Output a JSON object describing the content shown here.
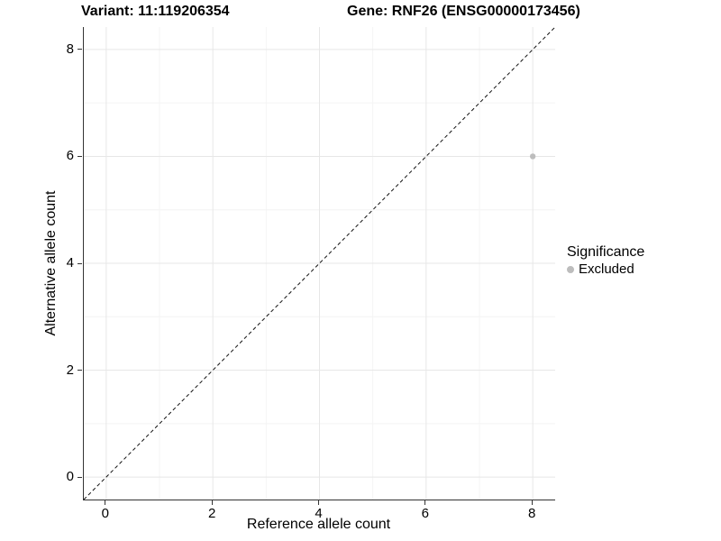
{
  "chart_data": {
    "type": "scatter",
    "title_left": "Variant: 11:119206354",
    "title_right": "Gene: RNF26 (ENSG00000173456)",
    "xlabel": "Reference allele count",
    "ylabel": "Alternative allele count",
    "xlim": [
      -0.42,
      8.42
    ],
    "ylim": [
      -0.42,
      8.42
    ],
    "x_ticks": [
      0,
      2,
      4,
      6,
      8
    ],
    "y_ticks": [
      0,
      2,
      4,
      6,
      8
    ],
    "minor_ticks": [
      1,
      3,
      5,
      7
    ],
    "grid": true,
    "reference_line": {
      "slope": 1,
      "intercept": 0,
      "style": "dashed",
      "color": "#111111"
    },
    "series": [
      {
        "name": "Excluded",
        "color": "#bdbdbd",
        "points": [
          {
            "x": 8,
            "y": 6
          }
        ]
      }
    ],
    "legend": {
      "title": "Significance",
      "position": "right",
      "entries": [
        {
          "label": "Excluded",
          "color": "#bdbdbd"
        }
      ]
    },
    "colors": {
      "grid_major": "#e7e7e7",
      "grid_minor": "#f4f4f4",
      "axis": "#333333",
      "tick_text": "#000000",
      "point": "#bdbdbd"
    }
  }
}
